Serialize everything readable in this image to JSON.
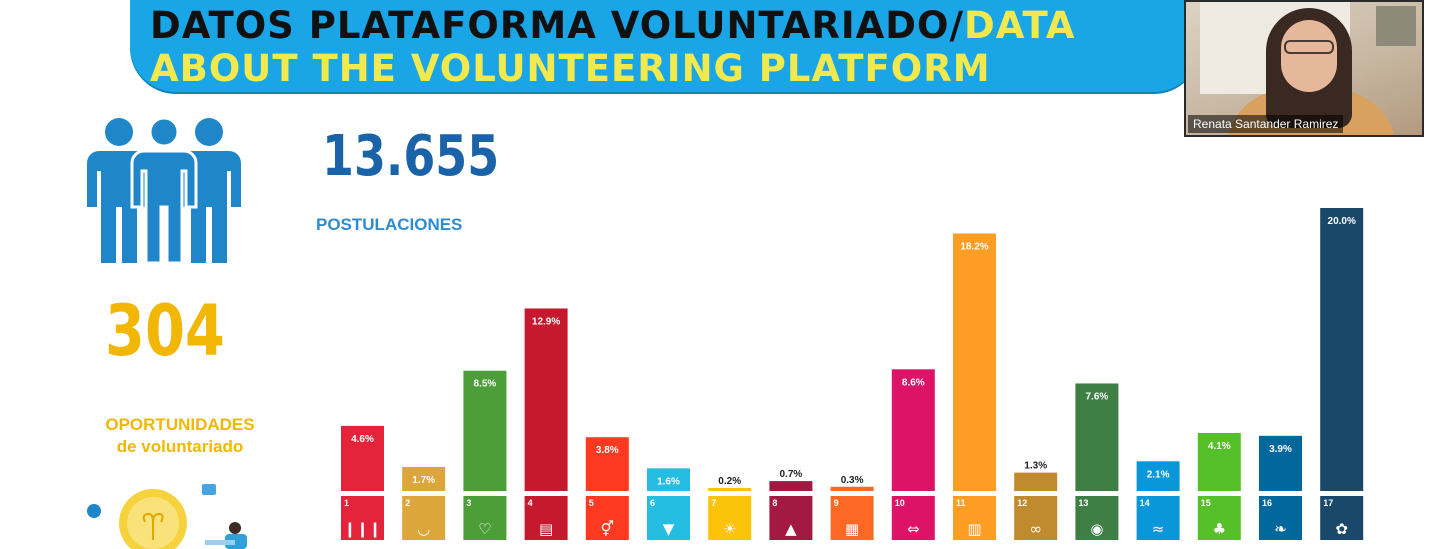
{
  "header": {
    "title_es": "DATOS PLATAFORMA VOLUNTARIADO/",
    "title_en_line1": "DATA",
    "title_en_line2": "ABOUT THE VOLUNTEERING PLATFORM"
  },
  "video": {
    "participant_name": "Renata Santander Ramirez"
  },
  "stats": {
    "postulaciones_count": "13.655",
    "postulaciones_label": "POSTULACIONES",
    "oportunidades_count": "304",
    "oportunidades_label_line1": "OPORTUNIDADES",
    "oportunidades_label_line2": "de voluntariado"
  },
  "colors": {
    "banner": "#1aa6e6",
    "title_dark": "#111111",
    "title_yellow": "#f2e94e",
    "people": "#1f86c9",
    "postulaciones": "#1a63a8",
    "oportunidades": "#f2b705"
  },
  "chart_data": {
    "type": "bar",
    "categories": [
      "1",
      "2",
      "3",
      "4",
      "5",
      "6",
      "7",
      "8",
      "9",
      "10",
      "11",
      "12",
      "13",
      "14",
      "15",
      "16",
      "17"
    ],
    "values": [
      4.6,
      1.7,
      8.5,
      12.9,
      3.8,
      1.6,
      0.2,
      0.7,
      0.3,
      8.6,
      18.2,
      1.3,
      7.6,
      2.1,
      4.1,
      3.9,
      20.0
    ],
    "labels": [
      "4.6%",
      "1.7%",
      "8.5%",
      "12.9%",
      "3.8%",
      "1.6%",
      "0.2%",
      "0.7%",
      "0.3%",
      "8.6%",
      "18.2%",
      "1.3%",
      "7.6%",
      "2.1%",
      "4.1%",
      "3.9%",
      "20.0%"
    ],
    "colors": [
      "#e5243b",
      "#dda63a",
      "#4c9f38",
      "#c5192d",
      "#ff3a21",
      "#26bde2",
      "#fcc30b",
      "#a21942",
      "#fd6925",
      "#dd1367",
      "#fd9d24",
      "#bf8b2e",
      "#3f7e44",
      "#0a97d9",
      "#56c02b",
      "#00689d",
      "#19486a"
    ],
    "icons": [
      "people-icon",
      "bowl-icon",
      "heartbeat-icon",
      "book-icon",
      "gender-icon",
      "water-drop-icon",
      "sun-icon",
      "growth-chart-icon",
      "cubes-icon",
      "arrows-icon",
      "buildings-icon",
      "infinity-icon",
      "eye-globe-icon",
      "fish-icon",
      "tree-icon",
      "dove-icon",
      "flower-icon"
    ],
    "ylim": [
      0,
      20
    ]
  }
}
